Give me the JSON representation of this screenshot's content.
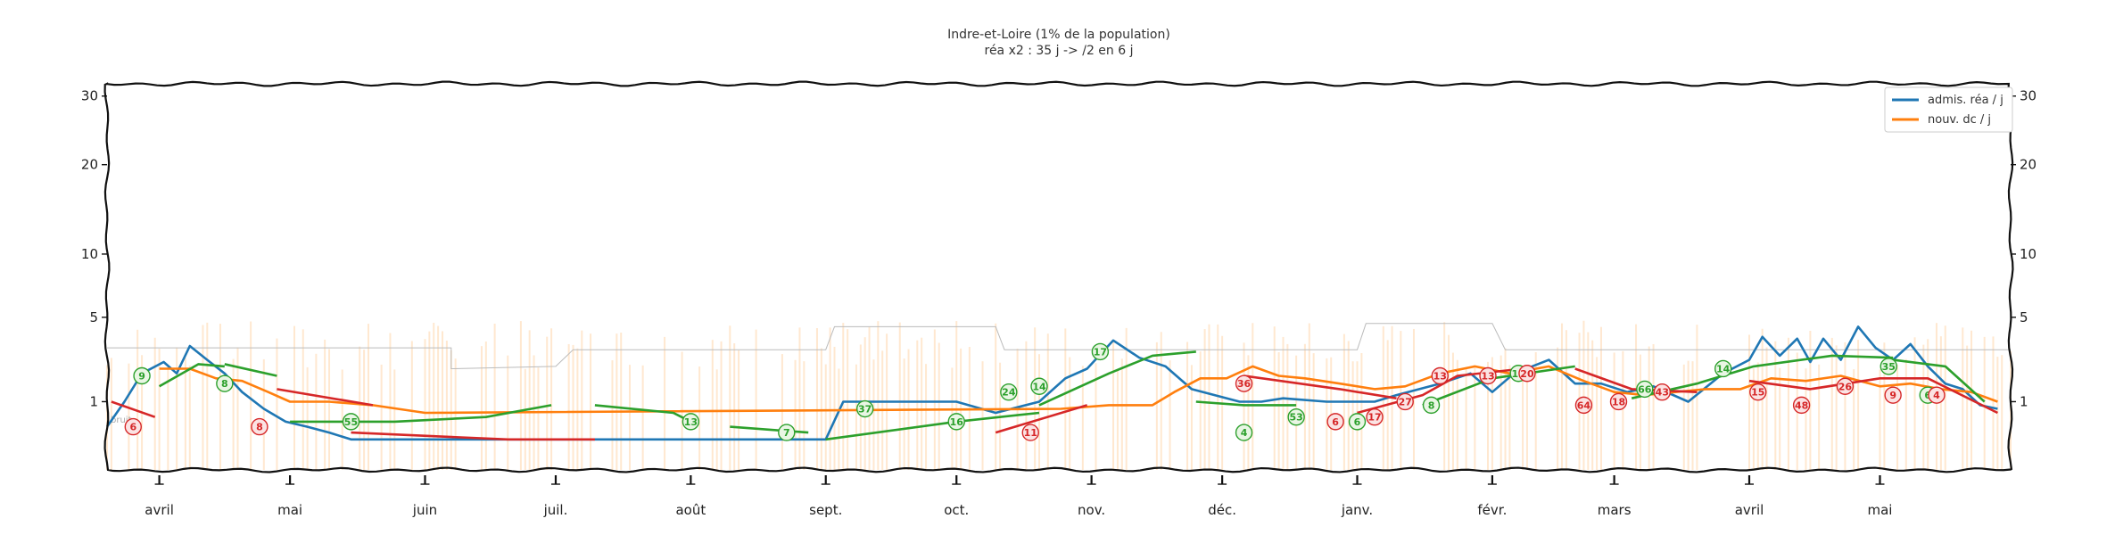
{
  "title_line1": "Indre-et-Loire (1% de la population)",
  "title_line2": "réa x2 : 35 j -> /2 en 6 j",
  "noise_label": "bruit",
  "chart_data": {
    "type": "line",
    "title": "Indre-et-Loire (1% de la population)",
    "subtitle": "réa x2 : 35 j -> /2 en 6 j",
    "y_scale": "sqrt",
    "ylim": [
      0,
      32
    ],
    "y_ticks": [
      1,
      5,
      10,
      20,
      30
    ],
    "y_tick_labels": [
      "1",
      "5",
      "10",
      "20",
      "30"
    ],
    "x_range": [
      "2020-03-20",
      "2021-05-31"
    ],
    "x_ticks": [
      "2020-04-01",
      "2020-05-01",
      "2020-06-01",
      "2020-07-01",
      "2020-08-01",
      "2020-09-01",
      "2020-10-01",
      "2020-11-01",
      "2020-12-01",
      "2021-01-01",
      "2021-02-01",
      "2021-03-01",
      "2021-04-01",
      "2021-05-01"
    ],
    "x_tick_labels": [
      "avril",
      "mai",
      "juin",
      "juil.",
      "août",
      "sept.",
      "oct.",
      "nov.",
      "déc.",
      "janv.",
      "févr.",
      "mars",
      "avril",
      "mai"
    ],
    "legend_position": "top-right",
    "colors": {
      "admissions": "#1f77b4",
      "deaths": "#ff7f0e",
      "trend_down": "#d62728",
      "trend_up": "#2ca02c",
      "noise_band": "#bbbbbb",
      "daily_bars": "#ffd9b0"
    },
    "series": [
      {
        "name": "admis. réa / j",
        "color": "#1f77b4",
        "points": [
          [
            "2020-03-20",
            0.4
          ],
          [
            "2020-03-24",
            1.0
          ],
          [
            "2020-03-28",
            2.0
          ],
          [
            "2020-04-02",
            2.5
          ],
          [
            "2020-04-05",
            2.0
          ],
          [
            "2020-04-08",
            3.3
          ],
          [
            "2020-04-12",
            2.6
          ],
          [
            "2020-04-16",
            2.0
          ],
          [
            "2020-04-20",
            1.3
          ],
          [
            "2020-04-25",
            0.8
          ],
          [
            "2020-04-30",
            0.5
          ],
          [
            "2020-05-05",
            0.4
          ],
          [
            "2020-05-10",
            0.3
          ],
          [
            "2020-05-15",
            0.2
          ],
          [
            "2020-09-01",
            0.2
          ],
          [
            "2020-09-05",
            1.0
          ],
          [
            "2020-09-20",
            1.0
          ],
          [
            "2020-10-01",
            1.0
          ],
          [
            "2020-10-10",
            0.7
          ],
          [
            "2020-10-20",
            1.0
          ],
          [
            "2020-10-26",
            1.8
          ],
          [
            "2020-10-31",
            2.2
          ],
          [
            "2020-11-06",
            3.6
          ],
          [
            "2020-11-12",
            2.7
          ],
          [
            "2020-11-18",
            2.3
          ],
          [
            "2020-11-24",
            1.4
          ],
          [
            "2020-12-05",
            1.0
          ],
          [
            "2020-12-10",
            1.0
          ],
          [
            "2020-12-15",
            1.1
          ],
          [
            "2020-12-25",
            1.0
          ],
          [
            "2021-01-05",
            1.0
          ],
          [
            "2021-01-10",
            1.2
          ],
          [
            "2021-01-20",
            1.6
          ],
          [
            "2021-01-27",
            2.0
          ],
          [
            "2021-02-01",
            1.3
          ],
          [
            "2021-02-06",
            2.0
          ],
          [
            "2021-02-14",
            2.6
          ],
          [
            "2021-02-20",
            1.6
          ],
          [
            "2021-02-26",
            1.6
          ],
          [
            "2021-03-04",
            1.3
          ],
          [
            "2021-03-10",
            1.5
          ],
          [
            "2021-03-18",
            1.0
          ],
          [
            "2021-03-26",
            2.0
          ],
          [
            "2021-04-01",
            2.6
          ],
          [
            "2021-04-04",
            3.8
          ],
          [
            "2021-04-08",
            2.8
          ],
          [
            "2021-04-12",
            3.7
          ],
          [
            "2021-04-15",
            2.5
          ],
          [
            "2021-04-18",
            3.7
          ],
          [
            "2021-04-22",
            2.6
          ],
          [
            "2021-04-26",
            4.4
          ],
          [
            "2021-04-30",
            3.2
          ],
          [
            "2021-05-04",
            2.6
          ],
          [
            "2021-05-08",
            3.4
          ],
          [
            "2021-05-12",
            2.3
          ],
          [
            "2021-05-16",
            1.6
          ],
          [
            "2021-05-20",
            1.4
          ],
          [
            "2021-05-24",
            0.9
          ],
          [
            "2021-05-28",
            0.8
          ]
        ]
      },
      {
        "name": "nouv. dc / j",
        "color": "#ff7f0e",
        "points": [
          [
            "2020-04-01",
            2.2
          ],
          [
            "2020-04-08",
            2.2
          ],
          [
            "2020-04-14",
            1.8
          ],
          [
            "2020-04-20",
            1.7
          ],
          [
            "2020-04-26",
            1.3
          ],
          [
            "2020-05-01",
            1.0
          ],
          [
            "2020-05-10",
            1.0
          ],
          [
            "2020-05-20",
            0.9
          ],
          [
            "2020-06-01",
            0.7
          ],
          [
            "2020-10-25",
            0.8
          ],
          [
            "2020-11-05",
            0.9
          ],
          [
            "2020-11-15",
            0.9
          ],
          [
            "2020-11-20",
            1.3
          ],
          [
            "2020-11-26",
            1.8
          ],
          [
            "2020-12-02",
            1.8
          ],
          [
            "2020-12-08",
            2.3
          ],
          [
            "2020-12-14",
            1.9
          ],
          [
            "2020-12-20",
            1.8
          ],
          [
            "2020-12-28",
            1.6
          ],
          [
            "2021-01-05",
            1.4
          ],
          [
            "2021-01-12",
            1.5
          ],
          [
            "2021-01-20",
            2.0
          ],
          [
            "2021-01-28",
            2.3
          ],
          [
            "2021-02-05",
            2.0
          ],
          [
            "2021-02-14",
            2.3
          ],
          [
            "2021-02-22",
            1.7
          ],
          [
            "2021-03-01",
            1.3
          ],
          [
            "2021-03-08",
            1.2
          ],
          [
            "2021-03-15",
            1.3
          ],
          [
            "2021-03-22",
            1.4
          ],
          [
            "2021-03-30",
            1.4
          ],
          [
            "2021-04-06",
            1.8
          ],
          [
            "2021-04-14",
            1.7
          ],
          [
            "2021-04-22",
            1.9
          ],
          [
            "2021-05-01",
            1.5
          ],
          [
            "2021-05-08",
            1.6
          ],
          [
            "2021-05-15",
            1.4
          ],
          [
            "2021-05-22",
            1.3
          ],
          [
            "2021-05-28",
            1.0
          ]
        ]
      }
    ],
    "trend_segments": [
      {
        "trend": "down",
        "points": [
          [
            "2020-03-21",
            1.0
          ],
          [
            "2020-03-31",
            0.6
          ]
        ]
      },
      {
        "trend": "up",
        "points": [
          [
            "2020-04-01",
            1.5
          ],
          [
            "2020-04-10",
            2.4
          ],
          [
            "2020-04-16",
            2.3
          ]
        ]
      },
      {
        "trend": "up",
        "points": [
          [
            "2020-04-16",
            2.4
          ],
          [
            "2020-04-28",
            1.9
          ]
        ]
      },
      {
        "trend": "down",
        "points": [
          [
            "2020-04-28",
            1.4
          ],
          [
            "2020-05-20",
            0.9
          ]
        ]
      },
      {
        "trend": "up",
        "points": [
          [
            "2020-05-01",
            0.5
          ],
          [
            "2020-05-25",
            0.5
          ],
          [
            "2020-06-15",
            0.6
          ],
          [
            "2020-06-30",
            0.9
          ]
        ]
      },
      {
        "trend": "down",
        "points": [
          [
            "2020-05-15",
            0.3
          ],
          [
            "2020-06-20",
            0.2
          ],
          [
            "2020-07-10",
            0.2
          ]
        ]
      },
      {
        "trend": "up",
        "points": [
          [
            "2020-07-10",
            0.9
          ],
          [
            "2020-07-28",
            0.7
          ],
          [
            "2020-08-01",
            0.5
          ]
        ]
      },
      {
        "trend": "up",
        "points": [
          [
            "2020-08-10",
            0.4
          ],
          [
            "2020-08-28",
            0.3
          ]
        ]
      },
      {
        "trend": "up",
        "points": [
          [
            "2020-09-01",
            0.2
          ],
          [
            "2020-10-01",
            0.5
          ],
          [
            "2020-10-20",
            0.7
          ]
        ]
      },
      {
        "trend": "down",
        "points": [
          [
            "2020-10-10",
            0.3
          ],
          [
            "2020-10-31",
            0.9
          ]
        ]
      },
      {
        "trend": "up",
        "points": [
          [
            "2020-10-20",
            0.9
          ],
          [
            "2020-11-05",
            2.0
          ],
          [
            "2020-11-15",
            2.8
          ],
          [
            "2020-11-25",
            3.0
          ]
        ]
      },
      {
        "trend": "up",
        "points": [
          [
            "2020-11-25",
            1.0
          ],
          [
            "2020-12-06",
            0.9
          ],
          [
            "2020-12-18",
            0.9
          ]
        ]
      },
      {
        "trend": "down",
        "points": [
          [
            "2020-12-06",
            1.9
          ],
          [
            "2020-12-28",
            1.4
          ],
          [
            "2021-01-10",
            1.1
          ]
        ]
      },
      {
        "trend": "down",
        "points": [
          [
            "2021-01-01",
            0.7
          ],
          [
            "2021-01-16",
            1.2
          ],
          [
            "2021-01-24",
            1.9
          ],
          [
            "2021-02-08",
            2.2
          ]
        ]
      },
      {
        "trend": "up",
        "points": [
          [
            "2021-01-16",
            0.9
          ],
          [
            "2021-02-01",
            1.8
          ],
          [
            "2021-02-20",
            2.3
          ]
        ]
      },
      {
        "trend": "down",
        "points": [
          [
            "2021-02-20",
            2.2
          ],
          [
            "2021-03-05",
            1.4
          ],
          [
            "2021-03-20",
            1.3
          ]
        ]
      },
      {
        "trend": "up",
        "points": [
          [
            "2021-03-05",
            1.1
          ],
          [
            "2021-03-20",
            1.6
          ],
          [
            "2021-04-02",
            2.3
          ],
          [
            "2021-04-20",
            2.8
          ],
          [
            "2021-05-04",
            2.7
          ]
        ]
      },
      {
        "trend": "down",
        "points": [
          [
            "2021-04-01",
            1.7
          ],
          [
            "2021-04-15",
            1.4
          ],
          [
            "2021-05-01",
            1.8
          ],
          [
            "2021-05-12",
            1.8
          ],
          [
            "2021-05-28",
            0.7
          ]
        ]
      },
      {
        "trend": "up",
        "points": [
          [
            "2021-05-04",
            2.6
          ],
          [
            "2021-05-16",
            2.3
          ],
          [
            "2021-05-25",
            1.0
          ]
        ]
      }
    ],
    "annotations": [
      {
        "text": "6",
        "date": "2020-03-26",
        "y": 0.4,
        "trend": "down"
      },
      {
        "text": "9",
        "date": "2020-03-28",
        "y": 1.9,
        "trend": "up"
      },
      {
        "text": "8",
        "date": "2020-04-16",
        "y": 1.6,
        "trend": "up"
      },
      {
        "text": "8",
        "date": "2020-04-24",
        "y": 0.4,
        "trend": "down"
      },
      {
        "text": "55",
        "date": "2020-05-15",
        "y": 0.5,
        "trend": "up"
      },
      {
        "text": "13",
        "date": "2020-08-01",
        "y": 0.5,
        "trend": "up"
      },
      {
        "text": "7",
        "date": "2020-08-23",
        "y": 0.3,
        "trend": "up"
      },
      {
        "text": "37",
        "date": "2020-09-10",
        "y": 0.8,
        "trend": "up"
      },
      {
        "text": "16",
        "date": "2020-10-01",
        "y": 0.5,
        "trend": "up"
      },
      {
        "text": "24",
        "date": "2020-10-13",
        "y": 1.3,
        "trend": "up"
      },
      {
        "text": "14",
        "date": "2020-10-20",
        "y": 1.5,
        "trend": "up"
      },
      {
        "text": "11",
        "date": "2020-10-18",
        "y": 0.3,
        "trend": "down"
      },
      {
        "text": "17",
        "date": "2020-11-03",
        "y": 3.0,
        "trend": "up"
      },
      {
        "text": "36",
        "date": "2020-12-06",
        "y": 1.6,
        "trend": "down"
      },
      {
        "text": "4",
        "date": "2020-12-06",
        "y": 0.3,
        "trend": "up"
      },
      {
        "text": "53",
        "date": "2020-12-18",
        "y": 0.6,
        "trend": "up"
      },
      {
        "text": "6",
        "date": "2020-12-27",
        "y": 0.5,
        "trend": "down"
      },
      {
        "text": "6",
        "date": "2021-01-01",
        "y": 0.5,
        "trend": "up"
      },
      {
        "text": "17",
        "date": "2021-01-05",
        "y": 0.6,
        "trend": "down"
      },
      {
        "text": "27",
        "date": "2021-01-12",
        "y": 1.0,
        "trend": "down"
      },
      {
        "text": "8",
        "date": "2021-01-18",
        "y": 0.9,
        "trend": "up"
      },
      {
        "text": "13",
        "date": "2021-01-20",
        "y": 1.9,
        "trend": "down"
      },
      {
        "text": "13",
        "date": "2021-01-31",
        "y": 1.9,
        "trend": "down"
      },
      {
        "text": "18",
        "date": "2021-02-07",
        "y": 2.0,
        "trend": "up"
      },
      {
        "text": "20",
        "date": "2021-02-09",
        "y": 2.0,
        "trend": "down"
      },
      {
        "text": "64",
        "date": "2021-02-22",
        "y": 0.9,
        "trend": "down"
      },
      {
        "text": "18",
        "date": "2021-03-02",
        "y": 1.0,
        "trend": "down"
      },
      {
        "text": "66",
        "date": "2021-03-08",
        "y": 1.4,
        "trend": "up"
      },
      {
        "text": "43",
        "date": "2021-03-12",
        "y": 1.3,
        "trend": "down"
      },
      {
        "text": "14",
        "date": "2021-03-26",
        "y": 2.2,
        "trend": "up"
      },
      {
        "text": "15",
        "date": "2021-04-03",
        "y": 1.3,
        "trend": "down"
      },
      {
        "text": "48",
        "date": "2021-04-13",
        "y": 0.9,
        "trend": "down"
      },
      {
        "text": "26",
        "date": "2021-04-23",
        "y": 1.5,
        "trend": "down"
      },
      {
        "text": "35",
        "date": "2021-05-03",
        "y": 2.3,
        "trend": "up"
      },
      {
        "text": "9",
        "date": "2021-05-04",
        "y": 1.2,
        "trend": "down"
      },
      {
        "text": "6",
        "date": "2021-05-12",
        "y": 1.2,
        "trend": "up"
      },
      {
        "text": "4",
        "date": "2021-05-14",
        "y": 1.2,
        "trend": "down"
      }
    ],
    "noise_band": [
      [
        "2020-03-20",
        3.2
      ],
      [
        "2020-06-07",
        3.2
      ],
      [
        "2020-06-07",
        2.2
      ],
      [
        "2020-07-01",
        2.3
      ],
      [
        "2020-07-05",
        3.1
      ],
      [
        "2020-09-01",
        3.1
      ],
      [
        "2020-09-03",
        4.4
      ],
      [
        "2020-10-10",
        4.4
      ],
      [
        "2020-10-12",
        3.1
      ],
      [
        "2021-01-01",
        3.1
      ],
      [
        "2021-01-03",
        4.6
      ],
      [
        "2021-02-01",
        4.6
      ],
      [
        "2021-02-04",
        3.1
      ],
      [
        "2021-05-31",
        3.1
      ]
    ]
  }
}
